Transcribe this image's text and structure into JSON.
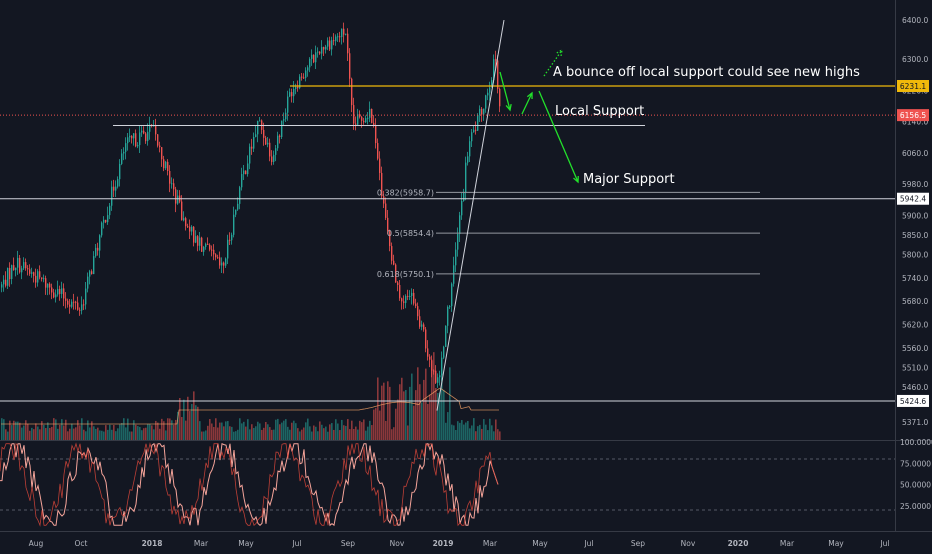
{
  "colors": {
    "background": "#131722",
    "bull": "#26a69a",
    "bear": "#ef5350",
    "resistance": "#f0b90b",
    "current_price": "#ef5350",
    "annotation_arrow": "#22e02b",
    "stoch": "#f5a49a",
    "vol_ma": "#f5a266",
    "level_line": "#d1d4dc"
  },
  "chart_data": [
    {
      "type": "candlestick",
      "title": "",
      "y_axis": {
        "ticks": [
          "6400.0",
          "6300.0",
          "6220.0",
          "6140.0",
          "6060.0",
          "5980.0",
          "5900.0",
          "5850.0",
          "5800.0",
          "5740.0",
          "5680.0",
          "5620.0",
          "5560.0",
          "5510.0",
          "5460.0",
          "5371.0"
        ],
        "ylim": [
          5340,
          6430
        ]
      },
      "x_axis": {
        "ticks": [
          {
            "label": "Aug",
            "bold": false
          },
          {
            "label": "Oct",
            "bold": false
          },
          {
            "label": "2018",
            "bold": true
          },
          {
            "label": "Mar",
            "bold": false
          },
          {
            "label": "May",
            "bold": false
          },
          {
            "label": "Jul",
            "bold": false
          },
          {
            "label": "Sep",
            "bold": false
          },
          {
            "label": "Nov",
            "bold": false
          },
          {
            "label": "2019",
            "bold": true
          },
          {
            "label": "Mar",
            "bold": false
          },
          {
            "label": "May",
            "bold": false
          },
          {
            "label": "Jul",
            "bold": false
          },
          {
            "label": "Sep",
            "bold": false
          },
          {
            "label": "Nov",
            "bold": false
          },
          {
            "label": "2020",
            "bold": true
          },
          {
            "label": "Mar",
            "bold": false
          },
          {
            "label": "May",
            "bold": false
          },
          {
            "label": "Jul",
            "bold": false
          }
        ]
      },
      "price_path": [
        [
          "Aug",
          5715
        ],
        [
          "Sep",
          5780
        ],
        [
          "Oct",
          5660
        ],
        [
          "Nov",
          5900
        ],
        [
          "Dec",
          6080
        ],
        [
          "2018",
          6120
        ],
        [
          "Feb",
          5870
        ],
        [
          "Mar",
          5760
        ],
        [
          "Apr",
          5980
        ],
        [
          "May",
          6140
        ],
        [
          "Jun",
          6050
        ],
        [
          "Jul",
          6220
        ],
        [
          "Aug",
          6330
        ],
        [
          "Sep",
          6370
        ],
        [
          "Sep",
          6130
        ],
        [
          "Oct",
          6170
        ],
        [
          "Oct",
          5880
        ],
        [
          "Nov",
          5660
        ],
        [
          "Nov",
          5700
        ],
        [
          "Dec",
          5470
        ],
        [
          "2019",
          5740
        ],
        [
          "Feb",
          6080
        ],
        [
          "Mar",
          6160
        ],
        [
          "Mar",
          6300
        ],
        [
          "Mar",
          6156.5
        ]
      ],
      "levels": [
        {
          "name": "resistance",
          "value": 6231.1,
          "label": "6231.1"
        },
        {
          "name": "current-price",
          "value": 6156.5,
          "label": "6156.5"
        },
        {
          "name": "local-support",
          "value": 6130
        },
        {
          "name": "major-support",
          "value": 5942.4,
          "label": "5942.4"
        },
        {
          "name": "low",
          "value": 5424.6,
          "label": "5424.6"
        }
      ],
      "fibonacci": [
        {
          "text": "0.382(5958.7)",
          "value": 5958.7
        },
        {
          "text": "0.5(5854.4)",
          "value": 5854.4
        },
        {
          "text": "0.618(5750.1)",
          "value": 5750.1
        }
      ],
      "annotations": [
        {
          "name": "bounce-note",
          "text": "A bounce off local support could see new highs"
        },
        {
          "name": "local-support-note",
          "text": "Local Support"
        },
        {
          "name": "major-support-note",
          "text": "Major Support"
        }
      ]
    },
    {
      "type": "line",
      "title": "",
      "y_axis": {
        "ticks": [
          "100.0000",
          "75.0000",
          "50.0000",
          "25.0000"
        ],
        "ylim": [
          0,
          100
        ]
      },
      "reference_lines": [
        80,
        20
      ]
    }
  ]
}
